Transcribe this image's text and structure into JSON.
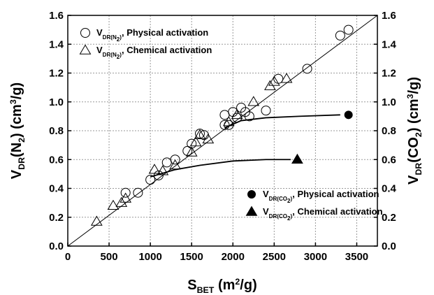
{
  "chart_data": {
    "type": "scatter",
    "x_label": [
      {
        "t": "S"
      },
      {
        "t": "BET",
        "shift": "sub"
      },
      {
        "t": " (m"
      },
      {
        "t": "2",
        "shift": "sup"
      },
      {
        "t": "/g)"
      }
    ],
    "y_label": [
      {
        "t": "V"
      },
      {
        "t": "DR",
        "shift": "sub"
      },
      {
        "t": "(N"
      },
      {
        "t": "2",
        "shift": "sub"
      },
      {
        "t": ") (cm"
      },
      {
        "t": "3",
        "shift": "sup"
      },
      {
        "t": "/g)"
      }
    ],
    "y2_label": [
      {
        "t": "V"
      },
      {
        "t": "DR",
        "shift": "sub"
      },
      {
        "t": "(CO"
      },
      {
        "t": "2",
        "shift": "sub"
      },
      {
        "t": ") (cm"
      },
      {
        "t": "3",
        "shift": "sup"
      },
      {
        "t": "/g)"
      }
    ],
    "xlim": [
      0,
      3750
    ],
    "xticks": [
      0,
      500,
      1000,
      1500,
      2000,
      2500,
      3000,
      3500
    ],
    "ylim": [
      0,
      1.6
    ],
    "yticks": [
      {
        "value": 0,
        "label": "0.0"
      },
      0.2,
      0.4,
      0.6,
      0.8,
      {
        "value": 1,
        "label": "1.0"
      },
      1.2,
      1.4,
      1.6
    ],
    "y2lim": [
      0,
      1.6
    ],
    "y2ticks": [
      {
        "value": 0,
        "label": "0.0"
      },
      0.2,
      0.4,
      0.6,
      0.8,
      {
        "value": 1,
        "label": "1.0"
      },
      1.2,
      1.4,
      1.6
    ],
    "grid": true,
    "series": [
      {
        "name": [
          {
            "t": "V"
          },
          {
            "t": "DR(N",
            "shift": "sub"
          },
          {
            "t": "2",
            "shift": "sub2"
          },
          {
            "t": ")",
            "shift": "sub"
          },
          {
            "t": ", Physical activation"
          }
        ],
        "marker": "circle",
        "filled": false,
        "color": "#000000",
        "legend": "upper left",
        "x": [
          700,
          850,
          1000,
          1100,
          1200,
          1300,
          1450,
          1500,
          1600,
          1650,
          1900,
          1900,
          1950,
          2000,
          2050,
          2100,
          2150,
          2200,
          2400,
          2550,
          2900,
          3300,
          3400
        ],
        "values": [
          0.37,
          0.37,
          0.46,
          0.49,
          0.58,
          0.6,
          0.66,
          0.71,
          0.78,
          0.77,
          0.84,
          0.91,
          0.84,
          0.93,
          0.89,
          0.96,
          0.93,
          0.9,
          0.94,
          1.16,
          1.23,
          1.46,
          1.5
        ]
      },
      {
        "name": [
          {
            "t": "V"
          },
          {
            "t": "DR(N",
            "shift": "sub"
          },
          {
            "t": "2",
            "shift": "sub2"
          },
          {
            "t": ")",
            "shift": "sub"
          },
          {
            "t": ", Chemical activation"
          }
        ],
        "marker": "triangle",
        "filled": false,
        "color": "#000000",
        "legend": "upper left",
        "x": [
          350,
          550,
          650,
          700,
          1050,
          1150,
          1300,
          1500,
          1550,
          1600,
          1700,
          1950,
          2050,
          2250,
          2450,
          2500,
          2650
        ],
        "values": [
          0.17,
          0.28,
          0.3,
          0.33,
          0.53,
          0.52,
          0.56,
          0.65,
          0.72,
          0.77,
          0.74,
          0.86,
          0.91,
          1.0,
          1.11,
          1.14,
          1.16
        ]
      },
      {
        "name": [
          {
            "t": "V"
          },
          {
            "t": "DR(CO",
            "shift": "sub"
          },
          {
            "t": "2",
            "shift": "sub2"
          },
          {
            "t": ")",
            "shift": "sub"
          },
          {
            "t": ", Physical activation"
          }
        ],
        "marker": "circle",
        "filled": true,
        "color": "#000000",
        "legend": "lower right",
        "axis": "y2",
        "x": [
          3400
        ],
        "values": [
          0.91
        ]
      },
      {
        "name": [
          {
            "t": "V"
          },
          {
            "t": "DR(CO",
            "shift": "sub"
          },
          {
            "t": "2",
            "shift": "sub2"
          },
          {
            "t": ")",
            "shift": "sub"
          },
          {
            "t": ", Chemical activation"
          }
        ],
        "marker": "triangle",
        "filled": true,
        "color": "#000000",
        "legend": "lower right",
        "axis": "y2",
        "x": [
          2780
        ],
        "values": [
          0.6
        ]
      },
      {
        "marker": "line",
        "color": "#000000",
        "x": [
          0,
          3750
        ],
        "values": [
          0,
          1.6
        ]
      },
      {
        "marker": "line",
        "color": "#000000",
        "axis": "y2",
        "x": [
          1900,
          2100,
          2400,
          2800,
          3300
        ],
        "values": [
          0.82,
          0.87,
          0.89,
          0.9,
          0.91
        ]
      },
      {
        "marker": "line",
        "color": "#000000",
        "axis": "y2",
        "x": [
          1000,
          1300,
          1600,
          2000,
          2400,
          2700
        ],
        "values": [
          0.48,
          0.53,
          0.56,
          0.59,
          0.6,
          0.6
        ]
      }
    ]
  }
}
